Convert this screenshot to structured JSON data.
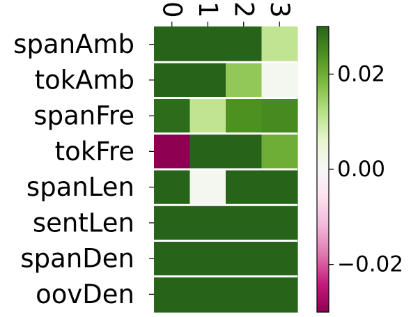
{
  "chart_data": {
    "type": "heatmap",
    "title": "",
    "xlabel": "",
    "ylabel": "",
    "x_categories": [
      "0",
      "1",
      "2",
      "3"
    ],
    "y_categories": [
      "spanAmb",
      "tokAmb",
      "spanFre",
      "tokFre",
      "spanLen",
      "sentLen",
      "spanDen",
      "oovDen"
    ],
    "values": [
      [
        0.03,
        0.03,
        0.03,
        0.011
      ],
      [
        0.03,
        0.03,
        0.016,
        0.001
      ],
      [
        0.029,
        0.011,
        0.024,
        0.025
      ],
      [
        -0.03,
        0.03,
        0.03,
        0.02
      ],
      [
        0.03,
        0.001,
        0.03,
        0.03
      ],
      [
        0.03,
        0.03,
        0.03,
        0.03
      ],
      [
        0.03,
        0.03,
        0.03,
        0.03
      ],
      [
        0.03,
        0.03,
        0.03,
        0.03
      ]
    ],
    "colormap": "PiYG",
    "vmin": -0.03,
    "vmax": 0.03,
    "colorbar": {
      "ticks": [
        0.02,
        0.0,
        -0.02
      ],
      "tick_labels": [
        "0.02",
        "0.00",
        "−0.02"
      ]
    },
    "grid": false,
    "row_separator_color": "#ffffff"
  }
}
